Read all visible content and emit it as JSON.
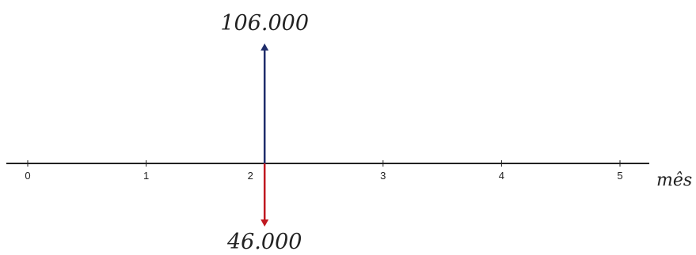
{
  "cash_flow": {
    "axis_label": "mês",
    "periods": [
      "0",
      "1",
      "2",
      "3",
      "4",
      "5"
    ],
    "inflows": [
      {
        "period": 2,
        "label": "106.000"
      }
    ],
    "outflows": [
      {
        "period": 2,
        "label": "46.000"
      }
    ]
  },
  "colors": {
    "axis": "#222222",
    "inflow": "#1f2d6b",
    "outflow": "#c01820",
    "text": "#222222"
  }
}
